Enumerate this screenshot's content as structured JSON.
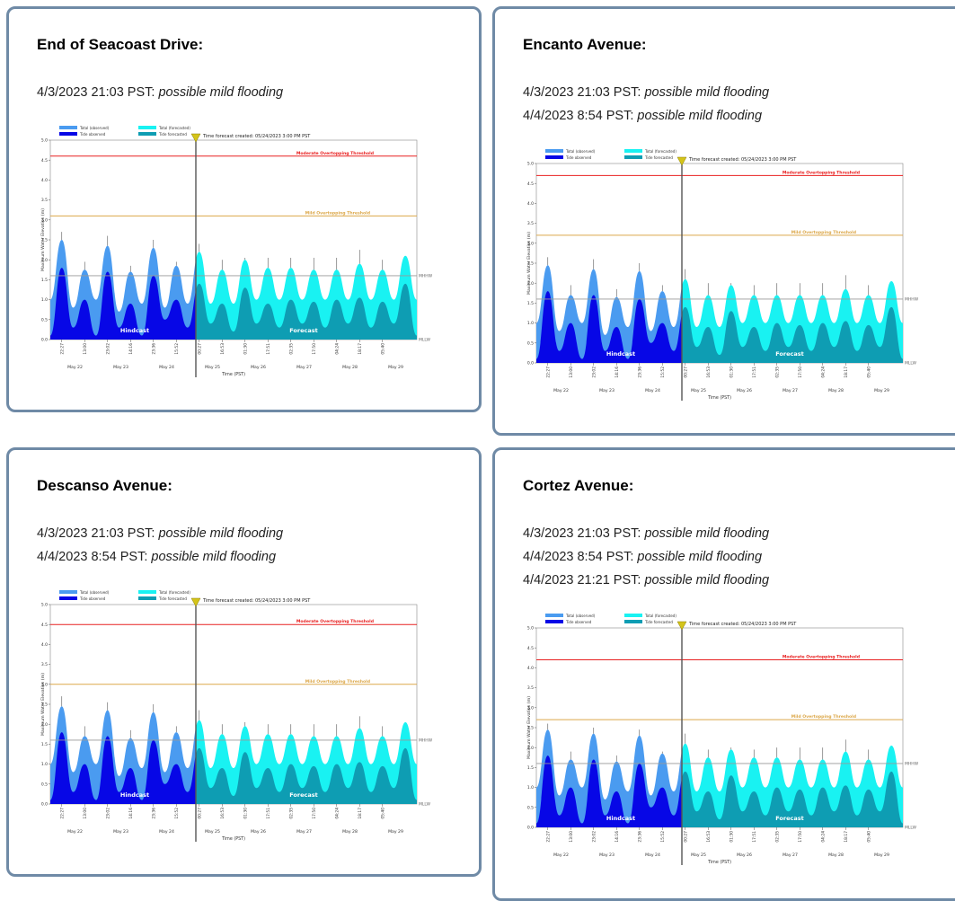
{
  "colors": {
    "card_border": "#6f8aa6",
    "total_hindcast": "#4a9bf0",
    "tide_hindcast": "#0707e6",
    "total_forecast": "#19f2f2",
    "tide_forecast": "#0e9db3",
    "moderate_line": "#e82020",
    "mild_line": "#dca84a",
    "mhhw_line": "#999999"
  },
  "cards": [
    {
      "title": "End of Seacoast Drive:",
      "alerts": [
        {
          "datetime": "4/3/2023 21:03 PST:",
          "status": "possible mild flooding"
        }
      ],
      "chart_data": {
        "type": "area",
        "legend": {
          "total_observed": "Total (observed)",
          "tide_observed": "Tide observed",
          "total_forecasted": "Total (forecasted)",
          "tide_forecasted": "Tide forecasted",
          "forecast_created": "Time forecast created: 05/24/2023 3:00 PM PST"
        },
        "ylabel": "Maximum Water Elevation (m)",
        "xlabel": "Time (PST)",
        "ylim": [
          0,
          5
        ],
        "yticks": [
          "0.0",
          "0.5",
          "1.0",
          "1.5",
          "2.0",
          "2.5",
          "3.0",
          "3.5",
          "4.0",
          "4.5",
          "5.0"
        ],
        "xdays": [
          "May 22",
          "May 23",
          "May 24",
          "May 25",
          "May 26",
          "May 27",
          "May 28",
          "May 29"
        ],
        "peak_times": [
          "22:27",
          "13:00",
          "23:02",
          "14:16",
          "23:36",
          "15:52",
          "00:27",
          "16:53",
          "01:30",
          "17:51",
          "02:35",
          "17:50",
          "04:24",
          "18:17",
          "05:40"
        ],
        "moderate_label": "Moderate Overtopping Threshold",
        "moderate_value": 4.6,
        "mild_label": "Mild Overtopping Threshold",
        "mild_value": 3.1,
        "mhhw_label": "MHHW",
        "mhhw_value": 1.6,
        "mllw_label": "MLLW",
        "hindcast_label": "Hindcast",
        "forecast_label": "Forecast",
        "total_peaks": [
          2.5,
          1.75,
          2.35,
          1.7,
          2.3,
          1.85,
          2.2,
          1.75,
          2.0,
          1.8,
          1.8,
          1.75,
          1.75,
          1.9,
          1.75,
          2.1
        ],
        "tide_peaks": [
          1.8,
          1.0,
          1.7,
          0.9,
          1.6,
          1.0,
          1.4,
          0.9,
          1.3,
          0.9,
          1.0,
          0.95,
          1.0,
          1.05,
          0.95,
          1.4
        ],
        "error_tops": [
          2.7,
          1.95,
          2.6,
          1.85,
          2.5,
          1.95,
          2.4,
          2.0,
          2.05,
          2.05,
          2.05,
          2.05,
          2.05,
          2.25,
          2.0,
          2.1
        ]
      }
    },
    {
      "title": "Encanto Avenue:",
      "alerts": [
        {
          "datetime": "4/3/2023 21:03 PST:",
          "status": "possible mild flooding"
        },
        {
          "datetime": "4/4/2023 8:54 PST:",
          "status": "possible mild flooding"
        }
      ],
      "chart_data": {
        "type": "area",
        "legend": {
          "total_observed": "Total (observed)",
          "tide_observed": "Tide observed",
          "total_forecasted": "Total (forecasted)",
          "tide_forecasted": "Tide forecasted",
          "forecast_created": "Time forecast created: 05/24/2023 3:00 PM PST"
        },
        "ylabel": "Maximum Water Elevation (m)",
        "xlabel": "Time (PST)",
        "ylim": [
          0,
          5
        ],
        "yticks": [
          "0.0",
          "0.5",
          "1.0",
          "1.5",
          "2.0",
          "2.5",
          "3.0",
          "3.5",
          "4.0",
          "4.5",
          "5.0"
        ],
        "xdays": [
          "May 22",
          "May 23",
          "May 24",
          "May 25",
          "May 26",
          "May 27",
          "May 28",
          "May 29"
        ],
        "peak_times": [
          "22:27",
          "13:00",
          "23:02",
          "14:16",
          "23:36",
          "15:52",
          "00:27",
          "16:53",
          "01:30",
          "17:51",
          "02:35",
          "17:50",
          "04:24",
          "18:17",
          "05:40"
        ],
        "moderate_label": "Moderate Overtopping Threshold",
        "moderate_value": 4.7,
        "mild_label": "Mild Overtopping Threshold",
        "mild_value": 3.2,
        "mhhw_label": "MHHW",
        "mhhw_value": 1.6,
        "mllw_label": "MLLW",
        "hindcast_label": "Hindcast",
        "forecast_label": "Forecast",
        "total_peaks": [
          2.45,
          1.7,
          2.35,
          1.65,
          2.3,
          1.8,
          2.1,
          1.7,
          1.95,
          1.7,
          1.7,
          1.7,
          1.7,
          1.85,
          1.7,
          2.05
        ],
        "tide_peaks": [
          1.8,
          1.0,
          1.7,
          0.9,
          1.6,
          1.0,
          1.4,
          0.9,
          1.3,
          0.9,
          1.0,
          0.95,
          1.0,
          1.05,
          0.95,
          1.4
        ],
        "error_tops": [
          2.65,
          1.95,
          2.6,
          1.85,
          2.5,
          1.95,
          2.35,
          2.0,
          2.0,
          1.95,
          2.0,
          2.0,
          2.0,
          2.2,
          1.95,
          2.05
        ]
      }
    },
    {
      "title": "Descanso Avenue:",
      "alerts": [
        {
          "datetime": "4/3/2023 21:03 PST:",
          "status": "possible mild flooding"
        },
        {
          "datetime": "4/4/2023 8:54 PST:",
          "status": "possible mild flooding"
        }
      ],
      "chart_data": {
        "type": "area",
        "legend": {
          "total_observed": "Total (observed)",
          "tide_observed": "Tide observed",
          "total_forecasted": "Total (forecasted)",
          "tide_forecasted": "Tide forecasted",
          "forecast_created": "Time forecast created: 05/24/2023 3:00 PM PST"
        },
        "ylabel": "Maximum Water Elevation (m)",
        "xlabel": "Time (PST)",
        "ylim": [
          0,
          5
        ],
        "yticks": [
          "0.0",
          "0.5",
          "1.0",
          "1.5",
          "2.0",
          "2.5",
          "3.0",
          "3.5",
          "4.0",
          "4.5",
          "5.0"
        ],
        "xdays": [
          "May 22",
          "May 23",
          "May 24",
          "May 25",
          "May 26",
          "May 27",
          "May 28",
          "May 29"
        ],
        "peak_times": [
          "22:27",
          "13:00",
          "23:02",
          "14:16",
          "23:36",
          "15:52",
          "00:27",
          "16:53",
          "01:30",
          "17:51",
          "02:35",
          "17:50",
          "04:24",
          "18:17",
          "05:40"
        ],
        "moderate_label": "Moderate Overtopping Threshold",
        "moderate_value": 4.5,
        "mild_label": "Mild Overtopping Threshold",
        "mild_value": 3.0,
        "mhhw_label": "MHHW",
        "mhhw_value": 1.6,
        "mllw_label": "MLLW",
        "hindcast_label": "Hindcast",
        "forecast_label": "Forecast",
        "total_peaks": [
          2.45,
          1.7,
          2.35,
          1.65,
          2.3,
          1.8,
          2.1,
          1.75,
          1.95,
          1.75,
          1.75,
          1.7,
          1.7,
          1.9,
          1.7,
          2.05
        ],
        "tide_peaks": [
          1.8,
          1.0,
          1.7,
          0.9,
          1.6,
          1.0,
          1.4,
          0.9,
          1.3,
          0.9,
          1.0,
          0.95,
          1.0,
          1.05,
          0.95,
          1.4
        ],
        "error_tops": [
          2.7,
          1.95,
          2.55,
          1.85,
          2.5,
          1.95,
          2.35,
          2.0,
          2.05,
          2.0,
          2.0,
          2.0,
          2.0,
          2.2,
          1.95,
          2.05
        ]
      }
    },
    {
      "title": "Cortez Avenue:",
      "alerts": [
        {
          "datetime": "4/3/2023 21:03 PST:",
          "status": "possible mild flooding"
        },
        {
          "datetime": "4/4/2023 8:54 PST:",
          "status": "possible mild flooding"
        },
        {
          "datetime": "4/4/2023 21:21 PST:",
          "status": "possible mild flooding"
        }
      ],
      "chart_data": {
        "type": "area",
        "legend": {
          "total_observed": "Total (observed)",
          "tide_observed": "Tide observed",
          "total_forecasted": "Total (forecasted)",
          "tide_forecasted": "Tide forecasted",
          "forecast_created": "Time forecast created: 05/24/2023 3:00 PM PST"
        },
        "ylabel": "Maximum Water Elevation (m)",
        "xlabel": "Time (PST)",
        "ylim": [
          0,
          5
        ],
        "yticks": [
          "0.0",
          "0.5",
          "1.0",
          "1.5",
          "2.0",
          "2.5",
          "3.0",
          "3.5",
          "4.0",
          "4.5",
          "5.0"
        ],
        "xdays": [
          "May 22",
          "May 23",
          "May 24",
          "May 25",
          "May 26",
          "May 27",
          "May 28",
          "May 29"
        ],
        "peak_times": [
          "22:27",
          "13:00",
          "23:02",
          "14:16",
          "23:36",
          "15:52",
          "00:27",
          "16:53",
          "01:30",
          "17:51",
          "02:35",
          "17:50",
          "04:24",
          "18:17",
          "05:40"
        ],
        "moderate_label": "Moderate Overtopping Threshold",
        "moderate_value": 4.2,
        "mild_label": "Mild Overtopping Threshold",
        "mild_value": 2.7,
        "mhhw_label": "MHHW",
        "mhhw_value": 1.6,
        "mllw_label": "MLLW",
        "hindcast_label": "Hindcast",
        "forecast_label": "Forecast",
        "total_peaks": [
          2.45,
          1.7,
          2.35,
          1.65,
          2.3,
          1.85,
          2.1,
          1.75,
          1.95,
          1.75,
          1.75,
          1.7,
          1.7,
          1.9,
          1.7,
          2.05
        ],
        "tide_peaks": [
          1.8,
          1.0,
          1.7,
          0.9,
          1.6,
          1.0,
          1.4,
          0.9,
          1.3,
          0.9,
          1.0,
          0.95,
          1.0,
          1.05,
          0.95,
          1.4
        ],
        "error_tops": [
          2.6,
          1.9,
          2.5,
          1.8,
          2.45,
          1.9,
          2.35,
          1.95,
          2.0,
          1.95,
          2.0,
          2.0,
          2.0,
          2.2,
          1.95,
          2.05
        ]
      }
    }
  ]
}
